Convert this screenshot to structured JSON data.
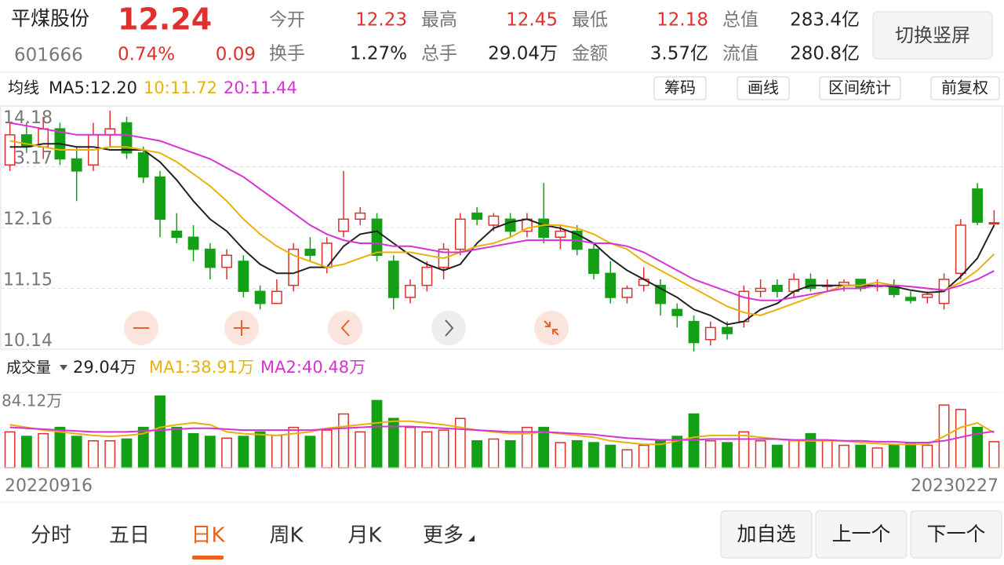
{
  "header": {
    "name": "平煤股份",
    "code": "601666",
    "price": "12.24",
    "change_pct": "0.74%",
    "change": "0.09",
    "button": "切换竖屏",
    "stats": [
      {
        "label": "今开",
        "value": "12.23",
        "color": "#e0302b"
      },
      {
        "label": "最高",
        "value": "12.45",
        "color": "#e0302b"
      },
      {
        "label": "最低",
        "value": "12.18",
        "color": "#e0302b"
      },
      {
        "label": "总值",
        "value": "283.4亿",
        "color": "#222222"
      },
      {
        "label": "换手",
        "value": "1.27%",
        "color": "#222222"
      },
      {
        "label": "总手",
        "value": "29.04万",
        "color": "#222222"
      },
      {
        "label": "金额",
        "value": "3.57亿",
        "color": "#222222"
      },
      {
        "label": "流值",
        "value": "280.8亿",
        "color": "#222222"
      }
    ]
  },
  "toolbar": {
    "ma_label": "均线",
    "buttons": [
      "筹码",
      "画线",
      "区间统计",
      "前复权"
    ]
  },
  "chart_data": [
    {
      "type": "candlestick",
      "up_color": "#e0302b",
      "down_color": "#14a014",
      "ylim": [
        10.14,
        14.18
      ],
      "yticks": [
        14.18,
        13.17,
        12.16,
        11.15,
        10.14
      ],
      "grid": true,
      "ohlc": [
        [
          13.2,
          13.9,
          13.1,
          13.7
        ],
        [
          13.7,
          13.9,
          13.4,
          13.5
        ],
        [
          13.5,
          14.0,
          13.3,
          13.8
        ],
        [
          13.8,
          13.9,
          13.2,
          13.3
        ],
        [
          13.3,
          13.5,
          12.6,
          13.1
        ],
        [
          13.2,
          13.9,
          13.1,
          13.7
        ],
        [
          13.7,
          14.1,
          13.5,
          13.8
        ],
        [
          13.9,
          14.0,
          13.3,
          13.4
        ],
        [
          13.4,
          13.5,
          12.9,
          13.0
        ],
        [
          13.0,
          13.1,
          12.0,
          12.3
        ],
        [
          12.1,
          12.4,
          11.9,
          12.0
        ],
        [
          12.0,
          12.2,
          11.6,
          11.8
        ],
        [
          11.8,
          11.9,
          11.3,
          11.5
        ],
        [
          11.5,
          11.8,
          11.3,
          11.7
        ],
        [
          11.6,
          11.7,
          11.0,
          11.1
        ],
        [
          11.1,
          11.2,
          10.8,
          10.9
        ],
        [
          10.9,
          11.3,
          10.9,
          11.1
        ],
        [
          11.2,
          11.9,
          11.1,
          11.8
        ],
        [
          11.8,
          12.0,
          11.6,
          11.7
        ],
        [
          11.5,
          12.0,
          11.4,
          11.9
        ],
        [
          12.1,
          13.1,
          12.0,
          12.3
        ],
        [
          12.3,
          12.5,
          12.2,
          12.4
        ],
        [
          12.3,
          12.4,
          11.6,
          11.7
        ],
        [
          11.6,
          11.7,
          10.8,
          11.0
        ],
        [
          11.0,
          11.3,
          10.9,
          11.2
        ],
        [
          11.2,
          11.6,
          11.1,
          11.5
        ],
        [
          11.5,
          11.9,
          11.3,
          11.8
        ],
        [
          11.8,
          12.4,
          11.7,
          12.3
        ],
        [
          12.4,
          12.5,
          12.2,
          12.3
        ],
        [
          12.2,
          12.4,
          12.1,
          12.35
        ],
        [
          12.3,
          12.4,
          12.0,
          12.1
        ],
        [
          12.1,
          12.4,
          12.0,
          12.3
        ],
        [
          12.3,
          12.9,
          11.9,
          12.0
        ],
        [
          12.0,
          12.2,
          11.8,
          12.1
        ],
        [
          12.1,
          12.2,
          11.7,
          11.8
        ],
        [
          11.8,
          11.9,
          11.3,
          11.4
        ],
        [
          11.4,
          11.6,
          10.9,
          11.0
        ],
        [
          11.0,
          11.2,
          10.9,
          11.15
        ],
        [
          11.2,
          11.5,
          11.1,
          11.3
        ],
        [
          11.2,
          11.3,
          10.7,
          10.9
        ],
        [
          10.8,
          10.9,
          10.5,
          10.7
        ],
        [
          10.6,
          10.7,
          10.1,
          10.25
        ],
        [
          10.3,
          10.6,
          10.2,
          10.5
        ],
        [
          10.5,
          10.6,
          10.3,
          10.4
        ],
        [
          10.6,
          11.2,
          10.5,
          11.1
        ],
        [
          11.1,
          11.3,
          11.0,
          11.15
        ],
        [
          11.2,
          11.3,
          11.0,
          11.1
        ],
        [
          11.1,
          11.4,
          11.0,
          11.3
        ],
        [
          11.3,
          11.4,
          11.1,
          11.15
        ],
        [
          11.2,
          11.3,
          11.1,
          11.2
        ],
        [
          11.2,
          11.3,
          11.1,
          11.25
        ],
        [
          11.3,
          11.3,
          11.1,
          11.15
        ],
        [
          11.2,
          11.3,
          11.1,
          11.2
        ],
        [
          11.2,
          11.3,
          11.0,
          11.05
        ],
        [
          11.0,
          11.1,
          10.9,
          10.95
        ],
        [
          11.0,
          11.1,
          10.9,
          11.05
        ],
        [
          10.9,
          11.4,
          10.8,
          11.3
        ],
        [
          11.4,
          12.3,
          11.3,
          12.2
        ],
        [
          12.8,
          12.9,
          12.2,
          12.25
        ],
        [
          12.23,
          12.45,
          12.18,
          12.24
        ]
      ],
      "series": [
        {
          "name": "MA5:12.20",
          "color": "#222222",
          "values": [
            13.5,
            13.5,
            13.55,
            13.55,
            13.5,
            13.5,
            13.45,
            13.45,
            13.45,
            13.25,
            12.95,
            12.6,
            12.3,
            12.1,
            11.8,
            11.55,
            11.4,
            11.4,
            11.5,
            11.5,
            11.85,
            12.05,
            12.1,
            11.9,
            11.7,
            11.55,
            11.45,
            11.55,
            11.9,
            12.15,
            12.25,
            12.3,
            12.2,
            12.15,
            12.05,
            11.9,
            11.65,
            11.45,
            11.3,
            11.15,
            11.0,
            10.8,
            10.7,
            10.55,
            10.6,
            10.8,
            10.9,
            11.1,
            11.2,
            11.2,
            11.2,
            11.2,
            11.2,
            11.18,
            11.12,
            11.08,
            11.1,
            11.35,
            11.65,
            12.2
          ]
        },
        {
          "name": "10:11.72",
          "color": "#e8b10c",
          "values": [
            13.6,
            13.55,
            13.5,
            13.45,
            13.45,
            13.45,
            13.5,
            13.5,
            13.45,
            13.4,
            13.25,
            13.05,
            12.85,
            12.6,
            12.3,
            12.05,
            11.85,
            11.7,
            11.6,
            11.5,
            11.55,
            11.65,
            11.75,
            11.75,
            11.75,
            11.7,
            11.65,
            11.75,
            11.85,
            11.9,
            12.0,
            12.15,
            12.2,
            12.2,
            12.15,
            12.05,
            11.9,
            11.8,
            11.6,
            11.45,
            11.3,
            11.15,
            11.0,
            10.85,
            10.75,
            10.7,
            10.8,
            10.9,
            11.0,
            11.1,
            11.2,
            11.2,
            11.25,
            11.2,
            11.18,
            11.15,
            11.12,
            11.25,
            11.45,
            11.72
          ]
        },
        {
          "name": "20:11.44",
          "color": "#d632d6",
          "values": [
            13.9,
            13.85,
            13.8,
            13.75,
            13.7,
            13.7,
            13.7,
            13.7,
            13.65,
            13.6,
            13.5,
            13.4,
            13.3,
            13.15,
            13.0,
            12.8,
            12.6,
            12.4,
            12.2,
            12.05,
            11.95,
            11.9,
            11.9,
            11.85,
            11.85,
            11.8,
            11.75,
            11.75,
            11.8,
            11.85,
            11.9,
            11.95,
            11.95,
            11.95,
            11.95,
            11.9,
            11.9,
            11.85,
            11.75,
            11.6,
            11.45,
            11.3,
            11.2,
            11.1,
            11.0,
            10.95,
            10.95,
            11.0,
            11.05,
            11.1,
            11.15,
            11.15,
            11.2,
            11.2,
            11.18,
            11.15,
            11.12,
            11.2,
            11.3,
            11.44
          ]
        }
      ]
    },
    {
      "type": "bar",
      "title": "成交量",
      "current": "29.04万",
      "ylim": [
        0,
        84.12
      ],
      "yticks": [
        {
          "value": 84.12,
          "label": "84.12万"
        }
      ],
      "categories": [
        "20220916",
        null,
        null,
        null,
        null,
        null,
        null,
        null,
        null,
        null,
        null,
        null,
        null,
        null,
        null,
        null,
        null,
        null,
        null,
        null,
        null,
        null,
        null,
        null,
        null,
        null,
        null,
        null,
        null,
        null,
        null,
        null,
        null,
        null,
        null,
        null,
        null,
        null,
        null,
        null,
        null,
        null,
        null,
        null,
        null,
        null,
        null,
        null,
        null,
        null,
        null,
        null,
        null,
        null,
        null,
        null,
        null,
        null,
        null,
        "20230227"
      ],
      "values": [
        40,
        35,
        38,
        45,
        35,
        30,
        30,
        32,
        45,
        80,
        45,
        38,
        35,
        33,
        35,
        40,
        36,
        45,
        35,
        42,
        60,
        40,
        75,
        55,
        45,
        40,
        42,
        55,
        30,
        32,
        30,
        45,
        45,
        28,
        30,
        28,
        25,
        20,
        25,
        30,
        35,
        60,
        30,
        28,
        40,
        30,
        25,
        30,
        38,
        30,
        25,
        25,
        22,
        25,
        28,
        25,
        70,
        65,
        45,
        29.04
      ],
      "series": [
        {
          "name": "MA1:38.91万",
          "color": "#e8b10c",
          "values": [
            48,
            45,
            42,
            40,
            38,
            36,
            35,
            36,
            38,
            45,
            48,
            50,
            48,
            40,
            38,
            37,
            36,
            38,
            40,
            44,
            46,
            48,
            50,
            52,
            52,
            50,
            48,
            45,
            42,
            40,
            38,
            38,
            40,
            38,
            36,
            34,
            30,
            28,
            26,
            26,
            30,
            34,
            36,
            36,
            36,
            34,
            32,
            30,
            30,
            30,
            30,
            28,
            27,
            26,
            26,
            26,
            35,
            45,
            50,
            38.91
          ]
        },
        {
          "name": "MA2:40.48万",
          "color": "#d632d6",
          "values": [
            45,
            44,
            43,
            42,
            41,
            40,
            40,
            40,
            41,
            42,
            43,
            44,
            44,
            43,
            42,
            42,
            42,
            42,
            42,
            43,
            44,
            45,
            46,
            46,
            46,
            45,
            44,
            43,
            42,
            41,
            40,
            40,
            40,
            39,
            38,
            37,
            35,
            33,
            32,
            31,
            31,
            31,
            32,
            32,
            32,
            32,
            32,
            31,
            31,
            31,
            30,
            30,
            29,
            29,
            28,
            28,
            30,
            34,
            38,
            40.48
          ]
        }
      ]
    }
  ],
  "tabs": {
    "items": [
      "分时",
      "五日",
      "日K",
      "周K",
      "月K",
      "更多"
    ],
    "active": 2,
    "actions": [
      "加自选",
      "上一个",
      "下一个"
    ]
  }
}
